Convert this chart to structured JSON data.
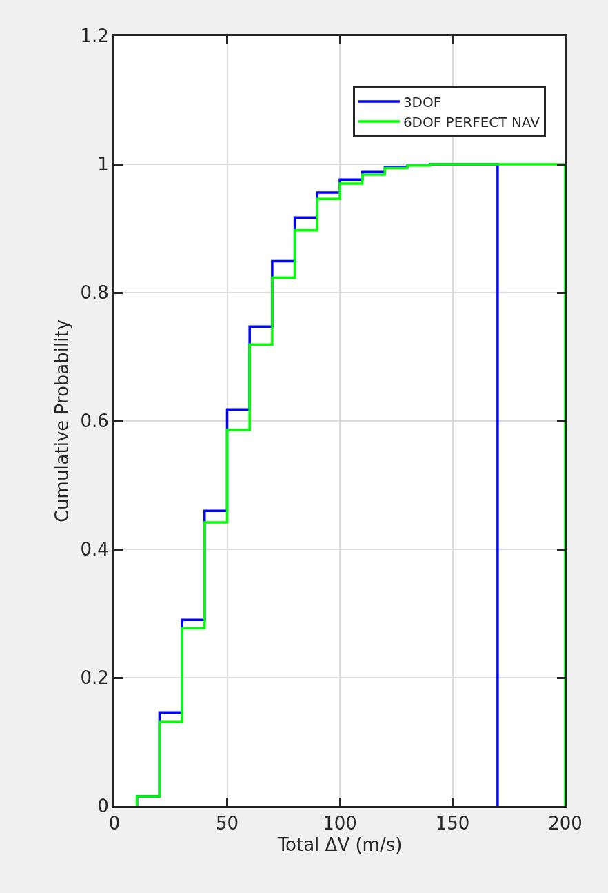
{
  "chart_data": {
    "type": "step",
    "xlabel": "Total ΔV (m/s)",
    "ylabel": "Cumulative Probability",
    "series": [
      {
        "name": "3DOF",
        "color": "#0000ff",
        "x": [
          10,
          10,
          20,
          30,
          40,
          50,
          60,
          70,
          80,
          90,
          100,
          110,
          120,
          130,
          140,
          150,
          160,
          170
        ],
        "values": [
          0,
          0.015,
          0.146,
          0.29,
          0.46,
          0.618,
          0.747,
          0.849,
          0.917,
          0.956,
          0.976,
          0.988,
          0.996,
          0.999,
          1,
          1,
          1,
          0
        ]
      },
      {
        "name": "6DOF PERFECT NAV",
        "color": "#00ff00",
        "x": [
          10,
          10,
          20,
          30,
          40,
          50,
          60,
          70,
          80,
          90,
          100,
          110,
          120,
          130,
          140,
          150,
          160,
          170,
          180,
          190,
          200
        ],
        "values": [
          0,
          0.015,
          0.131,
          0.277,
          0.442,
          0.586,
          0.719,
          0.823,
          0.897,
          0.946,
          0.97,
          0.984,
          0.994,
          0.998,
          1,
          1,
          1,
          1,
          1,
          1,
          0
        ]
      }
    ],
    "xlim": [
      0,
      200
    ],
    "xticks": [
      0,
      50,
      100,
      150,
      200
    ],
    "ylim": [
      0,
      1.2
    ],
    "yticks": [
      0,
      0.2,
      0.4,
      0.6,
      0.8,
      1,
      1.2
    ],
    "grid": true,
    "legend": "top right"
  }
}
